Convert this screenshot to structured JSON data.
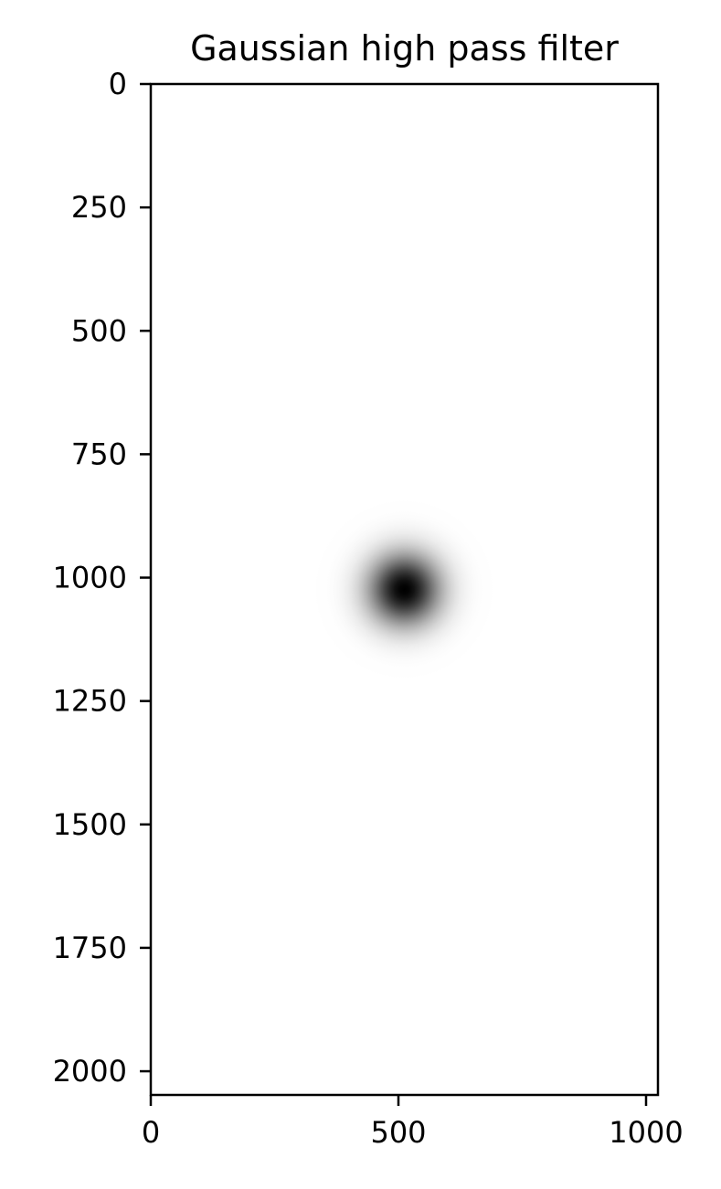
{
  "chart_data": {
    "type": "heatmap",
    "title": "Gaussian high pass filter",
    "xlabel": "",
    "ylabel": "",
    "colormap": "gray",
    "image_width": 1024,
    "image_height": 2048,
    "xlim": [
      0,
      1024
    ],
    "ylim": [
      2048,
      0
    ],
    "y_axis_inverted": true,
    "x_ticks": [
      {
        "value": 0,
        "label": "0"
      },
      {
        "value": 500,
        "label": "500"
      },
      {
        "value": 1000,
        "label": "1000"
      }
    ],
    "y_ticks": [
      {
        "value": 0,
        "label": "0"
      },
      {
        "value": 250,
        "label": "250"
      },
      {
        "value": 500,
        "label": "500"
      },
      {
        "value": 750,
        "label": "750"
      },
      {
        "value": 1000,
        "label": "1000"
      },
      {
        "value": 1250,
        "label": "1250"
      },
      {
        "value": 1500,
        "label": "1500"
      },
      {
        "value": 1750,
        "label": "1750"
      },
      {
        "value": 2000,
        "label": "2000"
      }
    ],
    "filter": {
      "center_x": 512,
      "center_y": 1024,
      "sigma": 50,
      "center_value": 0,
      "background_value": 1
    },
    "grid": false,
    "legend": "none",
    "colors": {
      "dark": "#000000",
      "light": "#ffffff",
      "axes": "#000000"
    }
  }
}
